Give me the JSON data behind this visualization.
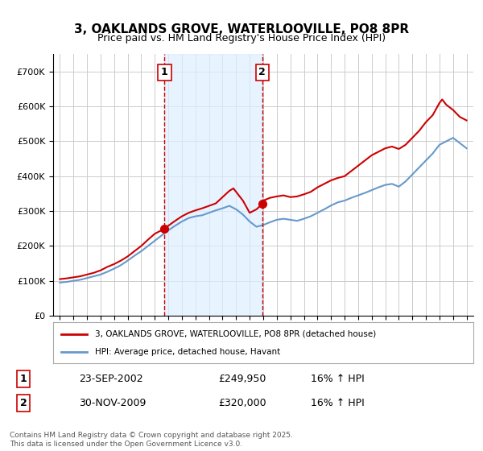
{
  "title": "3, OAKLANDS GROVE, WATERLOOVILLE, PO8 8PR",
  "subtitle": "Price paid vs. HM Land Registry's House Price Index (HPI)",
  "legend_line1": "3, OAKLANDS GROVE, WATERLOOVILLE, PO8 8PR (detached house)",
  "legend_line2": "HPI: Average price, detached house, Havant",
  "red_color": "#cc0000",
  "blue_color": "#6699cc",
  "shaded_region": [
    2002.72,
    2009.92
  ],
  "vline1_x": 2002.72,
  "vline2_x": 2009.92,
  "marker1_x": 2002.72,
  "marker1_y": 249950,
  "marker2_x": 2009.92,
  "marker2_y": 320000,
  "transaction1_label": "1",
  "transaction2_label": "2",
  "transaction1_date": "23-SEP-2002",
  "transaction1_price": "£249,950",
  "transaction1_hpi": "16% ↑ HPI",
  "transaction2_date": "30-NOV-2009",
  "transaction2_price": "£320,000",
  "transaction2_hpi": "16% ↑ HPI",
  "footer": "Contains HM Land Registry data © Crown copyright and database right 2025.\nThis data is licensed under the Open Government Licence v3.0.",
  "ylim": [
    0,
    750000
  ],
  "xlim": [
    1994.5,
    2025.5
  ],
  "yticks": [
    0,
    100000,
    200000,
    300000,
    400000,
    500000,
    600000,
    700000
  ],
  "ytick_labels": [
    "£0",
    "£100K",
    "£200K",
    "£300K",
    "£400K",
    "£500K",
    "£600K",
    "£700K"
  ],
  "xticks": [
    1995,
    1996,
    1997,
    1998,
    1999,
    2000,
    2001,
    2002,
    2003,
    2004,
    2005,
    2006,
    2007,
    2008,
    2009,
    2010,
    2011,
    2012,
    2013,
    2014,
    2015,
    2016,
    2017,
    2018,
    2019,
    2020,
    2021,
    2022,
    2023,
    2024,
    2025
  ],
  "background_color": "#ffffff",
  "grid_color": "#cccccc",
  "red_data": {
    "x": [
      1995.0,
      1995.5,
      1996.0,
      1996.5,
      1997.0,
      1997.5,
      1998.0,
      1998.5,
      1999.0,
      1999.5,
      2000.0,
      2000.5,
      2001.0,
      2001.5,
      2002.0,
      2002.5,
      2002.72,
      2003.0,
      2003.5,
      2004.0,
      2004.5,
      2005.0,
      2005.5,
      2006.0,
      2006.5,
      2007.0,
      2007.5,
      2007.8,
      2008.0,
      2008.5,
      2009.0,
      2009.5,
      2009.92,
      2010.0,
      2010.5,
      2011.0,
      2011.5,
      2012.0,
      2012.5,
      2013.0,
      2013.5,
      2014.0,
      2014.5,
      2015.0,
      2015.5,
      2016.0,
      2016.5,
      2017.0,
      2017.5,
      2018.0,
      2018.5,
      2019.0,
      2019.5,
      2020.0,
      2020.5,
      2021.0,
      2021.5,
      2022.0,
      2022.5,
      2023.0,
      2023.2,
      2023.5,
      2024.0,
      2024.5,
      2025.0
    ],
    "y": [
      105000,
      107000,
      110000,
      113000,
      118000,
      123000,
      130000,
      140000,
      148000,
      158000,
      170000,
      185000,
      200000,
      218000,
      235000,
      245000,
      249950,
      258000,
      272000,
      285000,
      295000,
      302000,
      308000,
      315000,
      322000,
      340000,
      358000,
      365000,
      355000,
      330000,
      295000,
      305000,
      320000,
      330000,
      338000,
      342000,
      345000,
      340000,
      342000,
      348000,
      355000,
      368000,
      378000,
      388000,
      395000,
      400000,
      415000,
      430000,
      445000,
      460000,
      470000,
      480000,
      485000,
      478000,
      490000,
      510000,
      530000,
      555000,
      575000,
      610000,
      620000,
      605000,
      590000,
      570000,
      560000
    ]
  },
  "blue_data": {
    "x": [
      1995.0,
      1995.5,
      1996.0,
      1996.5,
      1997.0,
      1997.5,
      1998.0,
      1998.5,
      1999.0,
      1999.5,
      2000.0,
      2000.5,
      2001.0,
      2001.5,
      2002.0,
      2002.5,
      2003.0,
      2003.5,
      2004.0,
      2004.5,
      2005.0,
      2005.5,
      2006.0,
      2006.5,
      2007.0,
      2007.5,
      2008.0,
      2008.5,
      2009.0,
      2009.5,
      2010.0,
      2010.5,
      2011.0,
      2011.5,
      2012.0,
      2012.5,
      2013.0,
      2013.5,
      2014.0,
      2014.5,
      2015.0,
      2015.5,
      2016.0,
      2016.5,
      2017.0,
      2017.5,
      2018.0,
      2018.5,
      2019.0,
      2019.5,
      2020.0,
      2020.5,
      2021.0,
      2021.5,
      2022.0,
      2022.5,
      2023.0,
      2023.5,
      2024.0,
      2024.5,
      2025.0
    ],
    "y": [
      95000,
      97000,
      100000,
      103000,
      108000,
      113000,
      118000,
      126000,
      135000,
      145000,
      158000,
      172000,
      185000,
      200000,
      215000,
      230000,
      245000,
      258000,
      270000,
      280000,
      285000,
      288000,
      295000,
      302000,
      308000,
      315000,
      305000,
      290000,
      270000,
      255000,
      260000,
      268000,
      275000,
      278000,
      275000,
      272000,
      278000,
      285000,
      295000,
      305000,
      316000,
      325000,
      330000,
      338000,
      345000,
      352000,
      360000,
      368000,
      375000,
      378000,
      370000,
      385000,
      405000,
      425000,
      445000,
      465000,
      490000,
      500000,
      510000,
      495000,
      480000
    ]
  }
}
